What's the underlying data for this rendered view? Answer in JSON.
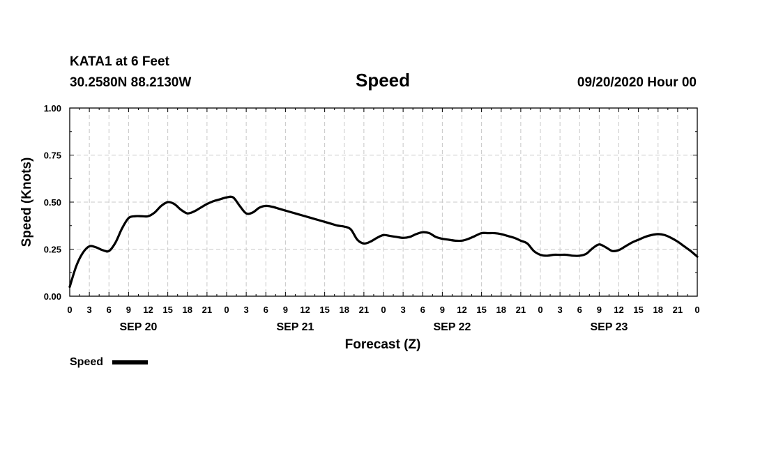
{
  "header": {
    "station": "KATA1 at 6 Feet",
    "coords": "30.2580N 88.2130W",
    "run": "09/20/2020 Hour 00"
  },
  "chart_data": {
    "type": "line",
    "title": "Speed",
    "ylabel": "Speed (Knots)",
    "xlabel": "Forecast (Z)",
    "ylim": [
      0,
      1
    ],
    "yticks": [
      "0.00",
      "0.25",
      "0.50",
      "0.75",
      "1.00"
    ],
    "grid": true,
    "x_unit": "forecast hour",
    "xlim": [
      0,
      96
    ],
    "xtick_labels": [
      "0",
      "3",
      "6",
      "9",
      "12",
      "15",
      "18",
      "21",
      "0",
      "3",
      "6",
      "9",
      "12",
      "15",
      "18",
      "21",
      "0",
      "3",
      "6",
      "9",
      "12",
      "15",
      "18",
      "21",
      "0",
      "3",
      "6",
      "9",
      "12",
      "15",
      "18",
      "21",
      "0"
    ],
    "day_labels": [
      "SEP 20",
      "SEP 21",
      "SEP 22",
      "SEP 23"
    ],
    "legend_position": "bottom-left",
    "series": [
      {
        "name": "Speed",
        "color": "#000000",
        "x": [
          0,
          1,
          2,
          3,
          4,
          5,
          6,
          7,
          8,
          9,
          10,
          11,
          12,
          13,
          14,
          15,
          16,
          17,
          18,
          19,
          20,
          21,
          22,
          23,
          24,
          25,
          26,
          27,
          28,
          29,
          30,
          31,
          32,
          33,
          34,
          35,
          36,
          37,
          38,
          39,
          40,
          41,
          42,
          43,
          44,
          45,
          46,
          47,
          48,
          49,
          50,
          51,
          52,
          53,
          54,
          55,
          56,
          57,
          58,
          59,
          60,
          61,
          62,
          63,
          64,
          65,
          66,
          67,
          68,
          69,
          70,
          71,
          72,
          73,
          74,
          75,
          76,
          77,
          78,
          79,
          80,
          81,
          82,
          83,
          84,
          85,
          86,
          87,
          88,
          89,
          90,
          91,
          92,
          93,
          94,
          95,
          96
        ],
        "values": [
          0.05,
          0.16,
          0.23,
          0.265,
          0.26,
          0.245,
          0.24,
          0.285,
          0.36,
          0.415,
          0.425,
          0.425,
          0.425,
          0.445,
          0.48,
          0.5,
          0.49,
          0.46,
          0.44,
          0.45,
          0.47,
          0.49,
          0.505,
          0.515,
          0.525,
          0.525,
          0.48,
          0.44,
          0.445,
          0.47,
          0.48,
          0.475,
          0.465,
          0.455,
          0.445,
          0.435,
          0.425,
          0.415,
          0.405,
          0.395,
          0.385,
          0.375,
          0.37,
          0.355,
          0.3,
          0.28,
          0.29,
          0.31,
          0.325,
          0.32,
          0.315,
          0.31,
          0.315,
          0.33,
          0.34,
          0.335,
          0.315,
          0.305,
          0.3,
          0.295,
          0.295,
          0.305,
          0.32,
          0.335,
          0.335,
          0.335,
          0.33,
          0.32,
          0.31,
          0.295,
          0.28,
          0.24,
          0.22,
          0.215,
          0.22,
          0.22,
          0.22,
          0.215,
          0.215,
          0.225,
          0.255,
          0.275,
          0.26,
          0.24,
          0.245,
          0.265,
          0.285,
          0.3,
          0.315,
          0.325,
          0.33,
          0.325,
          0.31,
          0.29,
          0.265,
          0.24,
          0.21
        ]
      }
    ]
  }
}
